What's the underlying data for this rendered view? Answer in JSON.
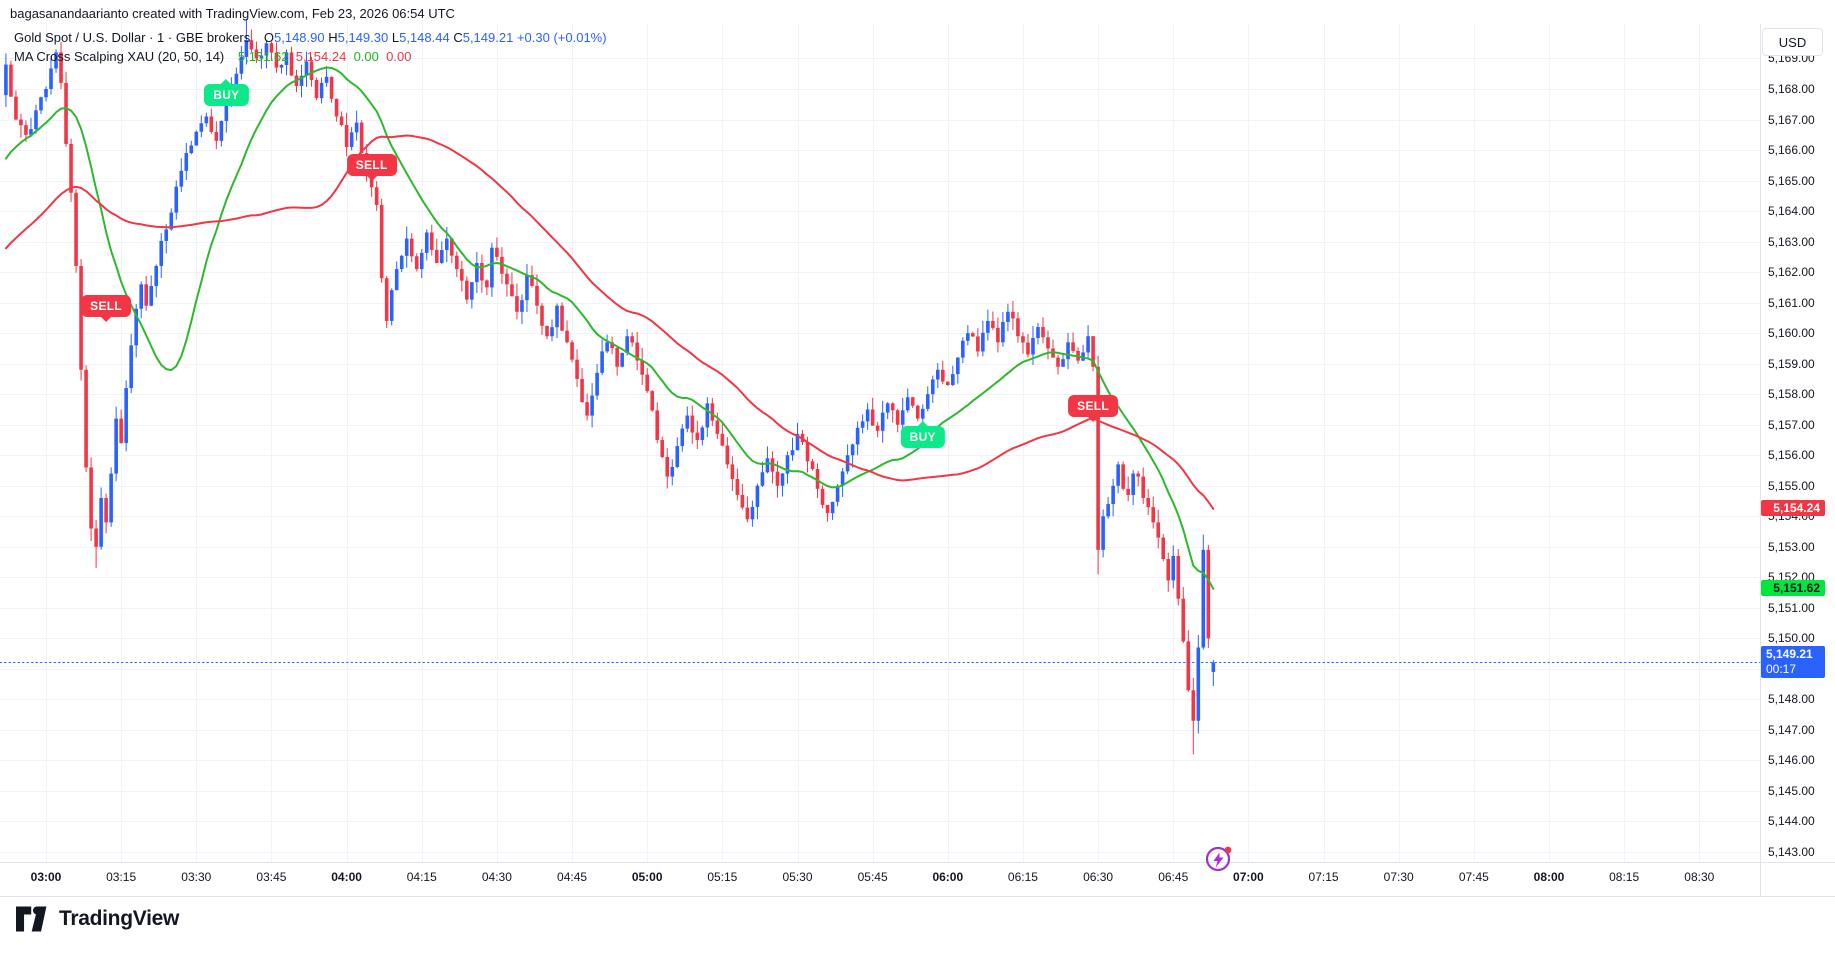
{
  "header": {
    "attribution": "bagasanandaarianto created with TradingView.com, Feb 23, 2026 06:54 UTC"
  },
  "legend": {
    "symbol_title": "Gold Spot / U.S. Dollar · 1 · GBE brokers",
    "o_letter": "O",
    "o_value": "5,148.90",
    "h_letter": "H",
    "h_value": "5,149.30",
    "l_letter": "L",
    "l_value": "5,148.44",
    "c_letter": "C",
    "c_value": "5,149.21",
    "change_value": "+0.30 (+0.01%)",
    "indicator_title": "MA Cross Scalping XAU (20, 50, 14)",
    "indicator_values": [
      "5,151.62",
      "5,154.24",
      "0.00",
      "0.00"
    ]
  },
  "footer": {
    "brand": "TradingView"
  },
  "chart_data": {
    "type": "candlestick",
    "symbol": "Gold Spot / U.S. Dollar",
    "interval": "1",
    "broker": "GBE brokers",
    "currency_button": "USD",
    "last_candle": {
      "open": 5148.9,
      "high": 5149.3,
      "low": 5148.44,
      "close": 5149.21,
      "change": "+0.30 (+0.01%)"
    },
    "y_axis": {
      "min": 5143,
      "max": 5169,
      "step": 1,
      "labels": [
        "5,169.00",
        "5,168.00",
        "5,167.00",
        "5,166.00",
        "5,165.00",
        "5,164.00",
        "5,163.00",
        "5,162.00",
        "5,161.00",
        "5,160.00",
        "5,159.00",
        "5,158.00",
        "5,157.00",
        "5,156.00",
        "5,155.00",
        "5,154.00",
        "5,153.00",
        "5,152.00",
        "5,151.00",
        "5,150.00",
        "5,148.00",
        "5,147.00",
        "5,146.00",
        "5,145.00",
        "5,144.00",
        "5,143.00"
      ]
    },
    "x_axis": {
      "labels": [
        "03:00",
        "03:15",
        "03:30",
        "03:45",
        "04:00",
        "04:15",
        "04:30",
        "04:45",
        "05:00",
        "05:15",
        "05:30",
        "05:45",
        "06:00",
        "06:15",
        "06:30",
        "06:45",
        "07:00",
        "07:15",
        "07:30",
        "07:45",
        "08:00",
        "08:15",
        "08:30"
      ]
    },
    "price_anchors_min_close": [
      [
        0,
        5168.8
      ],
      [
        2,
        5167.0
      ],
      [
        4,
        5166.5
      ],
      [
        6,
        5167.3
      ],
      [
        8,
        5168.0
      ],
      [
        10,
        5169.2
      ],
      [
        11,
        5168.2
      ],
      [
        12,
        5166.2
      ],
      [
        13,
        5164.6
      ],
      [
        14,
        5162.2
      ],
      [
        15,
        5158.8
      ],
      [
        16,
        5155.6
      ],
      [
        17,
        5153.6
      ],
      [
        18,
        5153.0
      ],
      [
        19,
        5154.6
      ],
      [
        20,
        5153.8
      ],
      [
        21,
        5155.4
      ],
      [
        22,
        5157.2
      ],
      [
        23,
        5156.4
      ],
      [
        24,
        5158.2
      ],
      [
        25,
        5159.6
      ],
      [
        26,
        5160.8
      ],
      [
        27,
        5161.6
      ],
      [
        28,
        5160.9
      ],
      [
        30,
        5162.2
      ],
      [
        32,
        5163.4
      ],
      [
        34,
        5164.8
      ],
      [
        36,
        5165.9
      ],
      [
        38,
        5166.6
      ],
      [
        40,
        5167.1
      ],
      [
        42,
        5166.3
      ],
      [
        44,
        5167.6
      ],
      [
        46,
        5168.5
      ],
      [
        48,
        5169.6
      ],
      [
        50,
        5169.0
      ],
      [
        52,
        5169.5
      ],
      [
        54,
        5168.7
      ],
      [
        56,
        5169.2
      ],
      [
        58,
        5168.1
      ],
      [
        60,
        5168.9
      ],
      [
        62,
        5167.7
      ],
      [
        64,
        5168.4
      ],
      [
        66,
        5167.1
      ],
      [
        68,
        5166.1
      ],
      [
        70,
        5166.9
      ],
      [
        72,
        5165.3
      ],
      [
        74,
        5164.2
      ],
      [
        75,
        5161.8
      ],
      [
        76,
        5160.4
      ],
      [
        78,
        5162.1
      ],
      [
        80,
        5163.1
      ],
      [
        82,
        5162.1
      ],
      [
        84,
        5163.3
      ],
      [
        86,
        5162.3
      ],
      [
        88,
        5163.1
      ],
      [
        90,
        5162.1
      ],
      [
        92,
        5161.1
      ],
      [
        94,
        5162.3
      ],
      [
        96,
        5161.5
      ],
      [
        97,
        5162.8
      ],
      [
        98,
        5162.5
      ],
      [
        100,
        5161.6
      ],
      [
        102,
        5160.7
      ],
      [
        104,
        5161.9
      ],
      [
        106,
        5160.9
      ],
      [
        108,
        5159.9
      ],
      [
        110,
        5160.9
      ],
      [
        112,
        5159.7
      ],
      [
        114,
        5158.5
      ],
      [
        116,
        5157.3
      ],
      [
        118,
        5158.7
      ],
      [
        120,
        5159.7
      ],
      [
        122,
        5158.9
      ],
      [
        124,
        5159.9
      ],
      [
        126,
        5159.1
      ],
      [
        128,
        5158.1
      ],
      [
        130,
        5156.5
      ],
      [
        132,
        5155.3
      ],
      [
        134,
        5156.3
      ],
      [
        136,
        5157.3
      ],
      [
        138,
        5156.5
      ],
      [
        140,
        5157.7
      ],
      [
        142,
        5156.7
      ],
      [
        144,
        5155.7
      ],
      [
        146,
        5154.7
      ],
      [
        148,
        5153.9
      ],
      [
        150,
        5155.0
      ],
      [
        152,
        5155.9
      ],
      [
        154,
        5155.0
      ],
      [
        156,
        5156.0
      ],
      [
        158,
        5156.7
      ],
      [
        160,
        5155.8
      ],
      [
        162,
        5154.9
      ],
      [
        164,
        5154.1
      ],
      [
        166,
        5155.0
      ],
      [
        168,
        5156.0
      ],
      [
        170,
        5156.9
      ],
      [
        172,
        5157.5
      ],
      [
        174,
        5156.8
      ],
      [
        176,
        5157.7
      ],
      [
        178,
        5157.0
      ],
      [
        180,
        5157.9
      ],
      [
        182,
        5157.2
      ],
      [
        184,
        5158.0
      ],
      [
        186,
        5158.8
      ],
      [
        188,
        5158.3
      ],
      [
        190,
        5159.2
      ],
      [
        192,
        5160.0
      ],
      [
        194,
        5159.4
      ],
      [
        196,
        5160.4
      ],
      [
        198,
        5159.7
      ],
      [
        200,
        5160.7
      ],
      [
        202,
        5159.9
      ],
      [
        204,
        5159.3
      ],
      [
        206,
        5160.2
      ],
      [
        208,
        5159.5
      ],
      [
        210,
        5158.9
      ],
      [
        212,
        5159.7
      ],
      [
        214,
        5159.1
      ],
      [
        216,
        5159.9
      ],
      [
        217,
        5158.9
      ],
      [
        218,
        5152.9
      ],
      [
        219,
        5154.0
      ],
      [
        220,
        5154.4
      ],
      [
        221,
        5155.0
      ],
      [
        222,
        5155.7
      ],
      [
        223,
        5154.9
      ],
      [
        224,
        5154.7
      ],
      [
        225,
        5155.4
      ],
      [
        226,
        5155.3
      ],
      [
        227,
        5154.6
      ],
      [
        228,
        5154.3
      ],
      [
        229,
        5153.8
      ],
      [
        230,
        5153.3
      ],
      [
        231,
        5152.6
      ],
      [
        232,
        5151.9
      ],
      [
        233,
        5152.7
      ],
      [
        234,
        5151.3
      ],
      [
        235,
        5149.9
      ],
      [
        236,
        5148.3
      ],
      [
        237,
        5147.3
      ],
      [
        238,
        5149.7
      ],
      [
        239,
        5152.9
      ],
      [
        240,
        5150.0
      ],
      [
        241,
        5149.21
      ]
    ],
    "history_anchors_min_close": [
      [
        -60,
        5157.5
      ],
      [
        -45,
        5159.5
      ],
      [
        -30,
        5161.2
      ],
      [
        -20,
        5163.2
      ],
      [
        -10,
        5165.6
      ],
      [
        -5,
        5166.6
      ],
      [
        -1,
        5167.8
      ]
    ],
    "special_bars": {
      "18": {
        "l": 5152.3
      },
      "48": {
        "h": 5170.3
      },
      "218": {
        "o": 5158.9,
        "l": 5152.1
      },
      "237": {
        "l": 5146.2
      },
      "239": {
        "h": 5153.4
      },
      "241": {
        "o": 5148.9,
        "h": 5149.3,
        "l": 5148.44,
        "c": 5149.21
      }
    },
    "moving_averages": {
      "fast": {
        "period": 20,
        "color": "#2db92d",
        "last_value": 5151.62,
        "last_label": "5,151.62"
      },
      "slow": {
        "period": 50,
        "color": "#f23645",
        "last_value": 5154.24,
        "last_label": "5,154.24"
      }
    },
    "signals": [
      {
        "label": "SELL",
        "side": "sell",
        "time": "03:12",
        "price": 5160.9
      },
      {
        "label": "BUY",
        "side": "buy",
        "time": "03:36",
        "price": 5167.8
      },
      {
        "label": "SELL",
        "side": "sell",
        "time": "04:05",
        "price": 5165.5
      },
      {
        "label": "BUY",
        "side": "buy",
        "time": "05:55",
        "price": 5156.6
      },
      {
        "label": "SELL",
        "side": "sell",
        "time": "06:29",
        "price": 5157.6
      }
    ],
    "last_price_line": {
      "price": 5149.21,
      "label": "5,149.21",
      "countdown": "00:17"
    },
    "colors": {
      "up": "#2962ff",
      "down": "#f23645",
      "grid": "#f0f3fa",
      "axis_border": "#e0e3eb",
      "text": "#131722",
      "last_price": "#2962ff",
      "tag_fast_bg": "#00e63d",
      "tag_slow_bg": "#f23645",
      "tag_last_bg": "#2962ff"
    }
  }
}
